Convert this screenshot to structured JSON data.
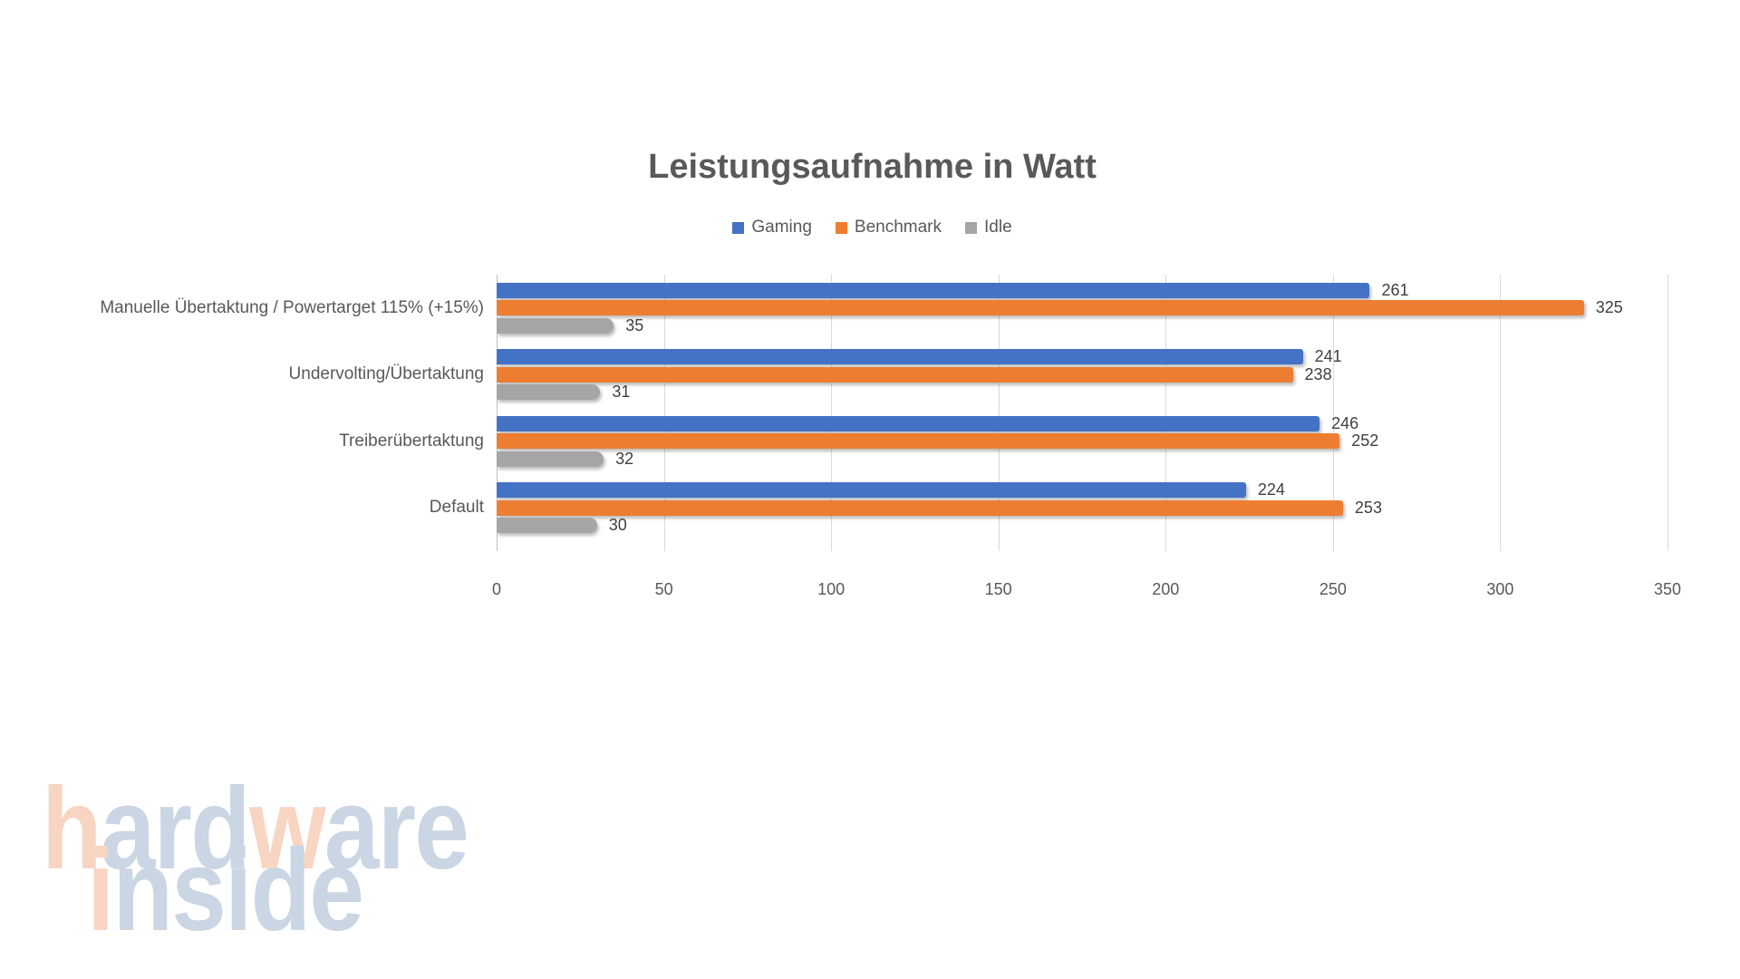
{
  "title": "Leistungsaufnahme in Watt",
  "chart_data": {
    "type": "bar",
    "orientation": "horizontal",
    "title": "Leistungsaufnahme in Watt",
    "categories": [
      "Manuelle Übertaktung / Powertarget 115% (+15%)",
      "Undervolting/Übertaktung",
      "Treiberübertaktung",
      "Default"
    ],
    "series": [
      {
        "name": "Gaming",
        "color": "#4472C4",
        "values": [
          261,
          241,
          246,
          224
        ]
      },
      {
        "name": "Benchmark",
        "color": "#ED7D31",
        "values": [
          325,
          238,
          252,
          253
        ]
      },
      {
        "name": "Idle",
        "color": "#A5A5A5",
        "values": [
          35,
          31,
          32,
          30
        ]
      }
    ],
    "xlabel": "",
    "ylabel": "",
    "xlim": [
      0,
      350
    ],
    "xticks": [
      0,
      50,
      100,
      150,
      200,
      250,
      300,
      350
    ],
    "grid": true,
    "legend_position": "top",
    "value_labels_shown": true
  },
  "colors": {
    "gaming": "#4472C4",
    "benchmark": "#ED7D31",
    "idle": "#A5A5A5",
    "gridline": "#D9D9D9",
    "axis_line": "#BFBFBF",
    "title_text": "#595959",
    "axis_text": "#595959",
    "value_text": "#404040"
  },
  "watermark": {
    "palette": {
      "peach": "#F8D5C2",
      "blue": "#CBD6E4"
    },
    "lines": [
      {
        "text": "hardware",
        "letter_colors": [
          "peach",
          "blue",
          "blue",
          "blue",
          "peach",
          "blue",
          "blue",
          "blue"
        ]
      },
      {
        "text": "inside",
        "letter_colors": [
          "peach",
          "blue",
          "blue",
          "blue",
          "blue",
          "blue"
        ]
      }
    ]
  }
}
